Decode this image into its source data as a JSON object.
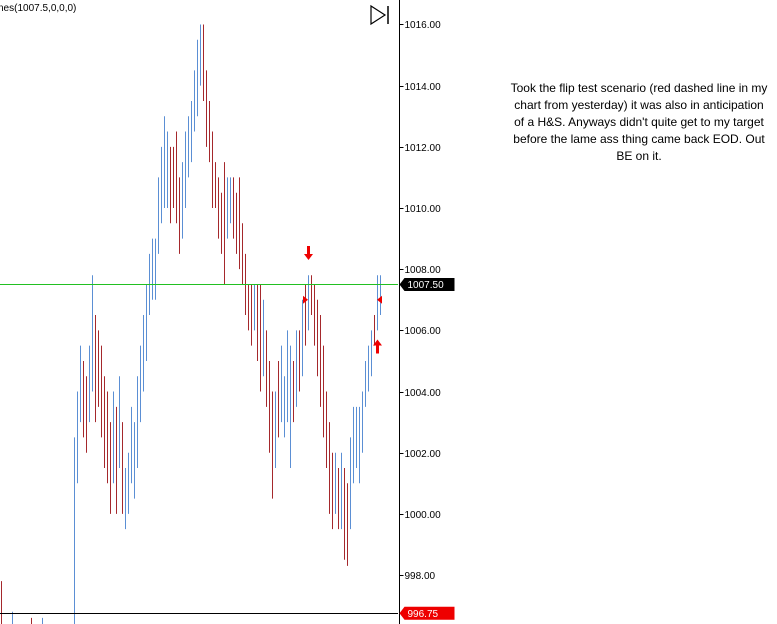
{
  "chart_title": "nes(1007.5,0,0,0)",
  "annotation": "Took the flip test scenario (red dashed line in my chart from yesterday) it was also in anticipation of a H&S. Anyways didn't quite get to my target before the lame ass thing came back EOD. Out BE on it.",
  "colors": {
    "up": "#5b8fd4",
    "down": "#a5282c",
    "level_line": "#22c022",
    "low_line": "#000000",
    "arrow": "#ee0000",
    "price_tag_dark": "#000000",
    "price_tag_red": "#ee0000"
  },
  "icons": {
    "play_button": "skip-to-end-icon"
  },
  "chart_data": {
    "type": "bar",
    "ylim": [
      996.4,
      1016.8
    ],
    "y_ticks": [
      "1016.00",
      "1014.00",
      "1012.00",
      "1010.00",
      "1008.00",
      "1006.00",
      "1004.00",
      "1002.00",
      "1000.00",
      "998.00"
    ],
    "y_tick_values": [
      1016,
      1014,
      1012,
      1010,
      1008,
      1006,
      1004,
      1002,
      1000,
      998
    ],
    "price_labels": [
      {
        "text": "1007.50",
        "value": 1007.5,
        "style": "dark"
      },
      {
        "text": "996.75",
        "value": 996.75,
        "style": "red"
      }
    ],
    "horizontal_lines": [
      {
        "value": 1007.5,
        "color": "#22c022"
      },
      {
        "value": 996.75,
        "color": "#000000"
      }
    ],
    "bars": [
      [
        1,
        996.0,
        997.8,
        "d"
      ],
      [
        12,
        996.0,
        996.8,
        "u"
      ],
      [
        31,
        996.0,
        996.6,
        "d"
      ],
      [
        42,
        996.0,
        996.6,
        "u"
      ],
      [
        74,
        996.0,
        1002.5,
        "u"
      ],
      [
        77,
        1001.0,
        1004.0,
        "u"
      ],
      [
        80,
        1003.0,
        1005.5,
        "u"
      ],
      [
        83,
        1002.5,
        1005.0,
        "d"
      ],
      [
        86,
        1002.0,
        1004.5,
        "d"
      ],
      [
        89,
        1003.0,
        1005.5,
        "u"
      ],
      [
        92,
        1004.0,
        1007.8,
        "u"
      ],
      [
        95,
        1003.0,
        1006.5,
        "d"
      ],
      [
        98,
        1003.5,
        1006.0,
        "d"
      ],
      [
        101,
        1002.5,
        1005.5,
        "d"
      ],
      [
        104,
        1001.5,
        1004.5,
        "d"
      ],
      [
        107,
        1001.0,
        1004.0,
        "d"
      ],
      [
        110,
        1000.0,
        1003.0,
        "d"
      ],
      [
        113,
        1001.0,
        1004.0,
        "u"
      ],
      [
        116,
        1000.0,
        1003.5,
        "d"
      ],
      [
        119,
        1001.5,
        1004.5,
        "u"
      ],
      [
        122,
        1000.0,
        1003.0,
        "d"
      ],
      [
        125,
        999.5,
        1001.5,
        "u"
      ],
      [
        128,
        1000.0,
        1002.0,
        "u"
      ],
      [
        131,
        1001.0,
        1003.5,
        "u"
      ],
      [
        134,
        1000.5,
        1003.0,
        "u"
      ],
      [
        137,
        1001.5,
        1004.5,
        "u"
      ],
      [
        140,
        1003.0,
        1005.5,
        "u"
      ],
      [
        143,
        1004.0,
        1006.5,
        "u"
      ],
      [
        146,
        1005.0,
        1007.5,
        "u"
      ],
      [
        149,
        1006.5,
        1008.5,
        "u"
      ],
      [
        152,
        1007.0,
        1009.0,
        "u"
      ],
      [
        155,
        1007.0,
        1009.0,
        "u"
      ],
      [
        158,
        1008.5,
        1011.0,
        "u"
      ],
      [
        161,
        1009.5,
        1012.0,
        "u"
      ],
      [
        164,
        1010.0,
        1013.0,
        "u"
      ],
      [
        167,
        1010.0,
        1012.5,
        "u"
      ],
      [
        170,
        1009.5,
        1012.0,
        "d"
      ],
      [
        173,
        1010.0,
        1012.0,
        "d"
      ],
      [
        176,
        1009.5,
        1012.5,
        "d"
      ],
      [
        179,
        1008.5,
        1011.0,
        "d"
      ],
      [
        182,
        1009.0,
        1011.5,
        "u"
      ],
      [
        185,
        1010.0,
        1012.5,
        "u"
      ],
      [
        188,
        1011.0,
        1013.0,
        "u"
      ],
      [
        191,
        1011.5,
        1013.5,
        "u"
      ],
      [
        194,
        1012.5,
        1014.5,
        "u"
      ],
      [
        197,
        1013.0,
        1015.5,
        "u"
      ],
      [
        200,
        1014.0,
        1016.0,
        "u"
      ],
      [
        203,
        1013.5,
        1016.0,
        "d"
      ],
      [
        206,
        1012.0,
        1014.5,
        "d"
      ],
      [
        209,
        1011.5,
        1013.5,
        "d"
      ],
      [
        212,
        1010.0,
        1012.5,
        "d"
      ],
      [
        215,
        1010.0,
        1011.5,
        "d"
      ],
      [
        218,
        1009.0,
        1011.0,
        "d"
      ],
      [
        221,
        1008.5,
        1010.5,
        "d"
      ],
      [
        224,
        1007.5,
        1011.5,
        "d"
      ],
      [
        227,
        1009.0,
        1011.0,
        "u"
      ],
      [
        230,
        1009.5,
        1011.0,
        "u"
      ],
      [
        233,
        1009.0,
        1011.0,
        "d"
      ],
      [
        236,
        1008.5,
        1010.5,
        "d"
      ],
      [
        239,
        1008.0,
        1011.0,
        "d"
      ],
      [
        242,
        1007.5,
        1009.5,
        "d"
      ],
      [
        245,
        1006.5,
        1008.5,
        "d"
      ],
      [
        248,
        1006.0,
        1007.5,
        "d"
      ],
      [
        251,
        1005.5,
        1007.5,
        "d"
      ],
      [
        254,
        1006.0,
        1007.5,
        "u"
      ],
      [
        257,
        1005.0,
        1007.5,
        "d"
      ],
      [
        260,
        1004.0,
        1007.5,
        "d"
      ],
      [
        263,
        1004.5,
        1007.0,
        "u"
      ],
      [
        266,
        1003.5,
        1006.0,
        "d"
      ],
      [
        269,
        1002.0,
        1005.0,
        "d"
      ],
      [
        272,
        1000.5,
        1004.0,
        "d"
      ],
      [
        275,
        1001.5,
        1004.0,
        "u"
      ],
      [
        278,
        1002.5,
        1005.0,
        "d"
      ],
      [
        281,
        1003.0,
        1005.5,
        "u"
      ],
      [
        284,
        1002.5,
        1004.5,
        "u"
      ],
      [
        287,
        1003.0,
        1006.0,
        "u"
      ],
      [
        290,
        1001.5,
        1005.5,
        "u"
      ],
      [
        293,
        1003.0,
        1005.0,
        "d"
      ],
      [
        296,
        1003.5,
        1006.0,
        "u"
      ],
      [
        299,
        1004.0,
        1006.0,
        "d"
      ],
      [
        302,
        1004.5,
        1007.0,
        "u"
      ],
      [
        305,
        1005.5,
        1007.5,
        "d"
      ],
      [
        308,
        1006.0,
        1007.8,
        "u"
      ],
      [
        311,
        1006.5,
        1007.8,
        "d"
      ],
      [
        314,
        1005.5,
        1007.5,
        "d"
      ],
      [
        317,
        1004.5,
        1007.0,
        "d"
      ],
      [
        320,
        1003.5,
        1006.5,
        "d"
      ],
      [
        323,
        1002.5,
        1005.5,
        "d"
      ],
      [
        326,
        1001.5,
        1004.0,
        "d"
      ],
      [
        329,
        1000.0,
        1003.0,
        "d"
      ],
      [
        332,
        999.5,
        1002.0,
        "d"
      ],
      [
        335,
        1000.0,
        1002.0,
        "u"
      ],
      [
        338,
        999.5,
        1001.5,
        "d"
      ],
      [
        341,
        999.5,
        1002.0,
        "u"
      ],
      [
        344,
        998.5,
        1001.5,
        "d"
      ],
      [
        347,
        998.3,
        1001.0,
        "d"
      ],
      [
        350,
        999.5,
        1002.5,
        "u"
      ],
      [
        353,
        1001.0,
        1003.5,
        "u"
      ],
      [
        356,
        1001.5,
        1003.5,
        "u"
      ],
      [
        359,
        1001.0,
        1003.5,
        "u"
      ],
      [
        362,
        1002.0,
        1004.0,
        "u"
      ],
      [
        365,
        1003.5,
        1005.0,
        "u"
      ],
      [
        368,
        1004.0,
        1005.5,
        "u"
      ],
      [
        371,
        1004.5,
        1006.0,
        "u"
      ],
      [
        374,
        1005.5,
        1006.5,
        "d"
      ],
      [
        377,
        1006.0,
        1007.8,
        "u"
      ],
      [
        380,
        1006.5,
        1007.8,
        "u"
      ]
    ],
    "arrows": [
      {
        "x": 308,
        "value": 1008.3,
        "dir": "down"
      },
      {
        "x": 377,
        "value": 1005.7,
        "dir": "up"
      }
    ],
    "markers": [
      {
        "x": 305,
        "value": 1007.0,
        "dir": "right"
      },
      {
        "x": 380,
        "value": 1007.0,
        "dir": "left"
      }
    ]
  }
}
